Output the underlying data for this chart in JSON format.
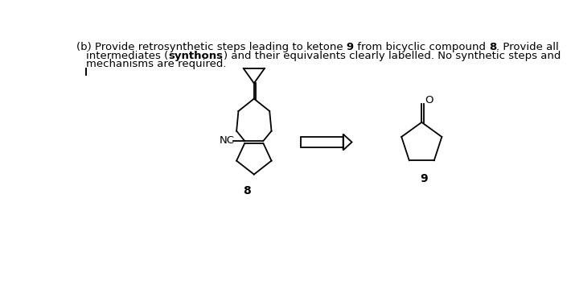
{
  "bg_color": "#ffffff",
  "line_color": "#000000",
  "text_color": "#000000",
  "font_size": 9.5,
  "label8": "8",
  "label9": "9",
  "label_NC": "NC",
  "label_O": "O",
  "line1_parts": [
    [
      "(b) Provide retrosynthetic steps leading to ketone ",
      false
    ],
    [
      "9",
      true
    ],
    [
      " from bicyclic compound ",
      false
    ],
    [
      "8",
      true
    ],
    [
      ". Provide all",
      false
    ]
  ],
  "line2_parts": [
    [
      "intermediates (",
      false
    ],
    [
      "synthons",
      true
    ],
    [
      ") and their equivalents clearly labelled. No synthetic steps and",
      false
    ]
  ],
  "line3": "mechanisms are required."
}
